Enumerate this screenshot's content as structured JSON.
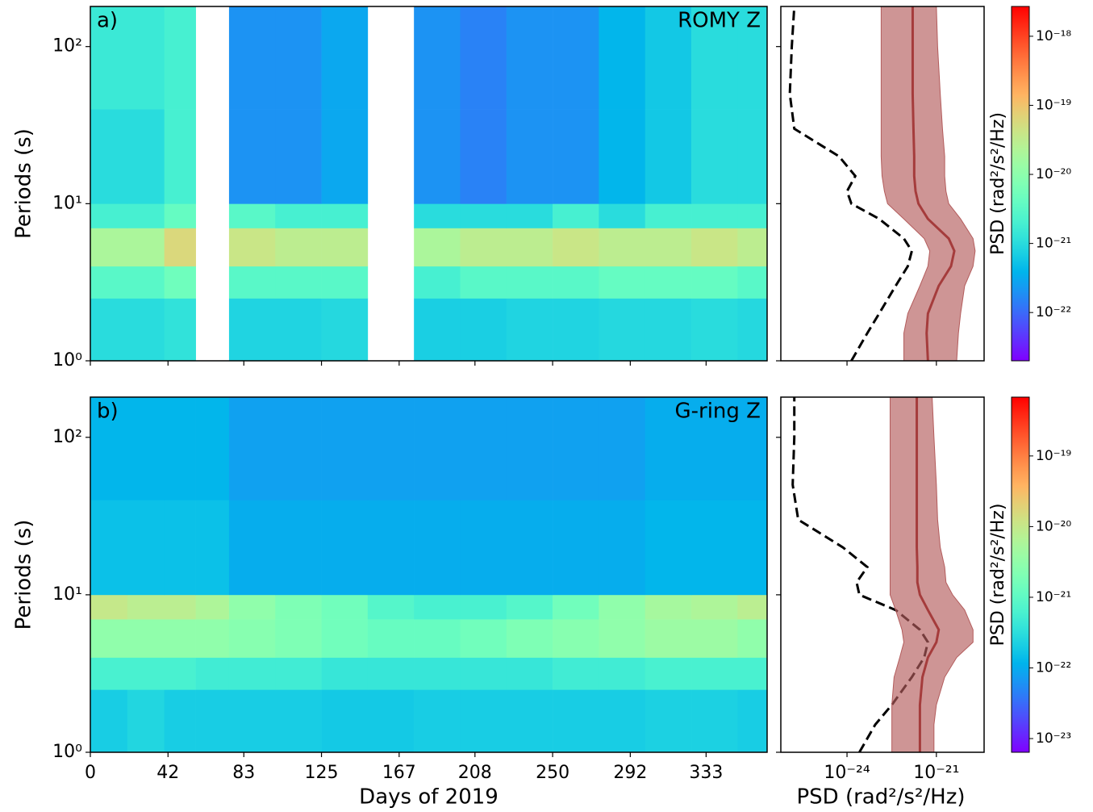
{
  "chart_data": [
    {
      "type": "heatmap",
      "label": "a)",
      "title": "ROMY Z",
      "y_label": "Periods (s)",
      "x_edges": [
        0,
        20,
        40,
        57,
        75,
        100,
        125,
        150,
        175,
        200,
        225,
        250,
        275,
        300,
        325,
        350,
        366
      ],
      "y_edges": [
        1,
        2.5,
        4,
        7,
        10,
        40,
        180
      ],
      "z": [
        [
          1e-21,
          1e-21,
          1.2e-21,
          null,
          8e-22,
          8e-22,
          9e-22,
          null,
          7e-22,
          7e-22,
          8e-22,
          8e-22,
          9e-22,
          9e-22,
          1e-21,
          9e-22
        ],
        [
          3e-21,
          3e-21,
          5e-21,
          null,
          3e-21,
          3e-21,
          3e-21,
          null,
          2e-21,
          3e-21,
          3e-21,
          3e-21,
          4e-21,
          4e-21,
          4e-21,
          3e-21
        ],
        [
          2e-20,
          2e-20,
          6e-20,
          null,
          4e-20,
          3e-20,
          3e-20,
          null,
          2e-20,
          3e-20,
          3e-20,
          4e-20,
          3e-20,
          3e-20,
          4e-20,
          3e-20
        ],
        [
          2e-21,
          2e-21,
          4e-21,
          null,
          3e-21,
          2e-21,
          2e-21,
          null,
          1e-21,
          1e-21,
          1e-21,
          2e-21,
          1e-21,
          2e-21,
          2e-21,
          2e-21
        ],
        [
          1e-21,
          1e-21,
          2e-21,
          null,
          2e-22,
          2e-22,
          3e-22,
          null,
          2e-22,
          1.5e-22,
          2e-22,
          2e-22,
          4e-22,
          6e-22,
          1e-21,
          1e-21
        ],
        [
          1.5e-21,
          1.5e-21,
          2e-21,
          null,
          2e-22,
          2e-22,
          3e-22,
          null,
          2e-22,
          1.5e-22,
          2e-22,
          2e-22,
          4e-22,
          6e-22,
          1e-21,
          1e-21
        ]
      ],
      "xlim": [
        0,
        366
      ],
      "ylim": [
        1,
        180
      ],
      "log_y": true,
      "yticks": [
        {
          "value": 1,
          "label": "10⁰"
        },
        {
          "value": 10,
          "label": "10¹"
        },
        {
          "value": 100,
          "label": "10²"
        }
      ],
      "colormap": "rainbow",
      "zlim": [
        2e-23,
        2.7e-18
      ],
      "colorbar_label": "PSD (rad²/s²/Hz)",
      "colorbar_ticks": [
        {
          "value": 1e-18,
          "label": "10⁻¹⁸"
        },
        {
          "value": 1e-19,
          "label": "10⁻¹⁹"
        },
        {
          "value": 1e-20,
          "label": "10⁻²⁰"
        },
        {
          "value": 1e-21,
          "label": "10⁻²¹"
        },
        {
          "value": 1e-22,
          "label": "10⁻²²"
        }
      ]
    },
    {
      "type": "profile",
      "log_x": true,
      "log_y": true,
      "xlim": [
        6e-27,
        4e-20
      ],
      "ylim": [
        1,
        180
      ],
      "periods": [
        1,
        1.5,
        2,
        3,
        4,
        5,
        6,
        8,
        10,
        12,
        15,
        20,
        30,
        50,
        100,
        180
      ],
      "median": [
        5.2e-22,
        4.7e-22,
        5.2e-22,
        1.2e-21,
        3.1e-21,
        4e-21,
        2.6e-21,
        5.2e-22,
        2.5e-22,
        2e-22,
        1.8e-22,
        1.8e-22,
        1.7e-22,
        1.6e-22,
        1.6e-22,
        1.6e-22
      ],
      "low": [
        8.1e-23,
        8.1e-23,
        1.1e-22,
        2.8e-22,
        5.2e-22,
        6e-22,
        3.9e-22,
        8.1e-23,
        2.3e-23,
        1.8e-23,
        1.5e-23,
        1.4e-23,
        1.4e-23,
        1.4e-23,
        1.4e-23,
        1.4e-23
      ],
      "high": [
        4.8e-21,
        5.5e-21,
        6.5e-21,
        8.9e-21,
        1.7e-20,
        2e-20,
        1.7e-20,
        6.5e-21,
        2.6e-21,
        2.1e-21,
        1.9e-21,
        1.9e-21,
        1.6e-21,
        1.35e-21,
        1.1e-21,
        1e-21
      ],
      "noise_model": [
        1.4e-24,
        4.8e-24,
        1.2e-23,
        4.3e-23,
        1.1e-22,
        1.5e-22,
        8.1e-23,
        1.2e-23,
        1.4e-24,
        1e-24,
        1.9e-24,
        5.4e-25,
        1.7e-26,
        1.2e-26,
        1.4e-26,
        1.7e-26
      ],
      "median_color": "#8b0000",
      "band_color": "#b35c5c",
      "noise_color": "#000000"
    },
    {
      "type": "heatmap",
      "label": "b)",
      "title": "G-ring Z",
      "y_label": "Periods (s)",
      "x_label": "Days of 2019",
      "x_edges": [
        0,
        20,
        40,
        57,
        75,
        100,
        125,
        150,
        175,
        200,
        225,
        250,
        275,
        300,
        325,
        350,
        366
      ],
      "y_edges": [
        1,
        2.5,
        4,
        7,
        10,
        40,
        180
      ],
      "z": [
        [
          2e-22,
          2.5e-22,
          2e-22,
          2e-22,
          2e-22,
          2e-22,
          1.8e-22,
          1.8e-22,
          2e-22,
          2e-22,
          2e-22,
          2e-22,
          2e-22,
          2.2e-22,
          2.2e-22,
          2e-22
        ],
        [
          6e-22,
          6e-22,
          6e-22,
          5e-22,
          5e-22,
          5e-22,
          4e-22,
          4e-22,
          4e-22,
          4e-22,
          4e-22,
          5e-22,
          5e-22,
          6e-22,
          6e-22,
          6e-22
        ],
        [
          3e-21,
          3e-21,
          3e-21,
          3e-21,
          2.5e-21,
          2e-21,
          1.5e-21,
          1.2e-21,
          1.2e-21,
          1.5e-21,
          2e-21,
          2.5e-21,
          3e-21,
          4e-21,
          4e-21,
          3e-21
        ],
        [
          1e-20,
          8e-21,
          8e-21,
          6e-21,
          3e-21,
          2e-21,
          1.5e-21,
          8e-22,
          6e-22,
          6e-22,
          8e-22,
          1.5e-21,
          3e-21,
          5e-21,
          6e-21,
          8e-21
        ],
        [
          1.5e-22,
          1.5e-22,
          1.5e-22,
          1.5e-22,
          1e-22,
          1e-22,
          1e-22,
          1e-22,
          1e-22,
          1e-22,
          1e-22,
          1e-22,
          1e-22,
          1.2e-22,
          1.2e-22,
          1.2e-22
        ],
        [
          1.2e-22,
          1.2e-22,
          1.2e-22,
          1.2e-22,
          8e-23,
          8e-23,
          8e-23,
          8e-23,
          8e-23,
          8e-23,
          8e-23,
          8e-23,
          8e-23,
          1e-22,
          1e-22,
          1e-22
        ]
      ],
      "xlim": [
        0,
        366
      ],
      "xticks": [
        0,
        42,
        83,
        125,
        167,
        208,
        250,
        292,
        333
      ],
      "ylim": [
        1,
        180
      ],
      "log_y": true,
      "yticks": [
        {
          "value": 1,
          "label": "10⁰"
        },
        {
          "value": 10,
          "label": "10¹"
        },
        {
          "value": 100,
          "label": "10²"
        }
      ],
      "colormap": "rainbow",
      "zlim": [
        6.4e-24,
        6.8e-19
      ],
      "colorbar_label": "PSD (rad²/s²/Hz)",
      "colorbar_ticks": [
        {
          "value": 1e-19,
          "label": "10⁻¹⁹"
        },
        {
          "value": 1e-20,
          "label": "10⁻²⁰"
        },
        {
          "value": 1e-21,
          "label": "10⁻²¹"
        },
        {
          "value": 1e-22,
          "label": "10⁻²²"
        },
        {
          "value": 1e-23,
          "label": "10⁻²³"
        }
      ]
    },
    {
      "type": "profile",
      "log_x": true,
      "log_y": true,
      "xlim": [
        6e-27,
        4e-20
      ],
      "ylim": [
        1,
        180
      ],
      "x_label": "PSD (rad²/s²/Hz)",
      "xticks": [
        {
          "value": 1e-24,
          "label": "10⁻²⁴"
        },
        {
          "value": 1e-21,
          "label": "10⁻²¹"
        }
      ],
      "periods": [
        1,
        1.5,
        2,
        3,
        4,
        5,
        6,
        8,
        10,
        12,
        15,
        20,
        30,
        50,
        100,
        180
      ],
      "median": [
        2.8e-22,
        2.8e-22,
        2.8e-22,
        3.4e-22,
        5.2e-22,
        1e-21,
        1.2e-21,
        5.2e-22,
        2.8e-22,
        2.3e-22,
        2.3e-22,
        2.2e-22,
        2.2e-22,
        2.2e-22,
        2.2e-22,
        2.2e-22
      ],
      "low": [
        3.2e-23,
        3.2e-23,
        3.2e-23,
        3.8e-23,
        5.9e-23,
        8.1e-23,
        7e-23,
        4.3e-23,
        2.8e-23,
        2.8e-23,
        2.8e-23,
        2.8e-23,
        2.8e-23,
        2.8e-23,
        2.8e-23,
        2.8e-23
      ],
      "high": [
        8.3e-22,
        8.3e-22,
        1e-21,
        1.9e-21,
        4.8e-21,
        1.7e-20,
        1.7e-20,
        8.9e-21,
        3.5e-21,
        2.1e-21,
        1.9e-21,
        1.35e-21,
        1.1e-21,
        1e-21,
        8.3e-22,
        7.2e-22
      ],
      "noise_model": [
        2.6e-24,
        8.9e-24,
        3.2e-23,
        1.5e-22,
        3.9e-22,
        5.2e-22,
        2.8e-22,
        4.3e-23,
        2.6e-24,
        2.1e-24,
        4.8e-24,
        7.3e-25,
        2.3e-26,
        1.5e-26,
        1.7e-26,
        1.7e-26
      ],
      "median_color": "#8b0000",
      "band_color": "#b35c5c",
      "noise_color": "#000000"
    }
  ]
}
